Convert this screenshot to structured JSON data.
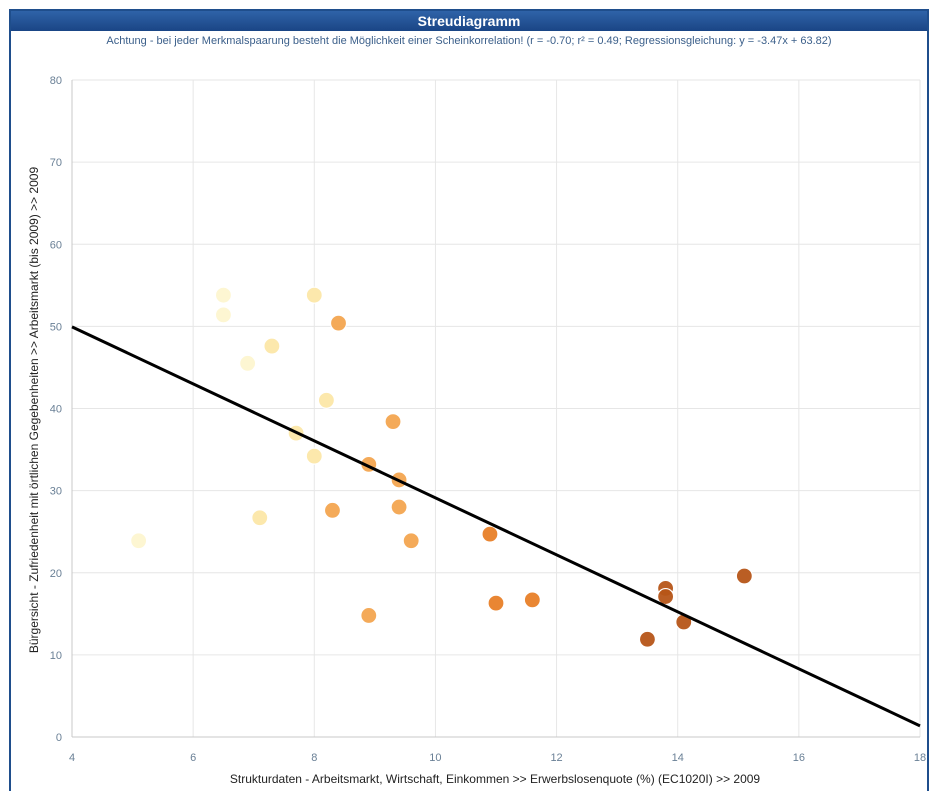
{
  "header": {
    "title": "Streudiagramm",
    "subtitle": "Achtung - bei jeder Merkmalspaarung besteht die Möglichkeit einer Scheinkorrelation! (r = -0.70; r² =  0.49; Regressionsgleichung: y = -3.47x  + 63.82)"
  },
  "chart_data": {
    "type": "scatter",
    "xlabel": "Strukturdaten - Arbeitsmarkt, Wirtschaft, Einkommen >> Erwerbslosenquote (%) (EC1020I) >>  2009",
    "ylabel": "Bürgersicht - Zufriedenheit mit örtlichen Gegebenheiten >> Arbeitsmarkt (bis 2009) >>  2009",
    "xlim": [
      4,
      18
    ],
    "ylim": [
      0,
      80
    ],
    "x_ticks": [
      "4",
      "6",
      "8",
      "10",
      "12",
      "14",
      "16",
      "18"
    ],
    "y_ticks": [
      "0",
      "10",
      "20",
      "30",
      "40",
      "50",
      "60",
      "70",
      "80"
    ],
    "grid": true,
    "regression": {
      "slope": -3.47,
      "intercept": 63.82,
      "color": "#000000"
    },
    "colors": [
      "#fdf6d0",
      "#fce7a8",
      "#f9cf86",
      "#f3a550",
      "#e88028",
      "#b65518",
      "#8a3a10"
    ],
    "points": [
      {
        "x": 5.1,
        "y": 23.9,
        "c": 0
      },
      {
        "x": 6.5,
        "y": 53.8,
        "c": 0
      },
      {
        "x": 6.5,
        "y": 51.4,
        "c": 0
      },
      {
        "x": 6.9,
        "y": 45.5,
        "c": 0
      },
      {
        "x": 7.1,
        "y": 26.7,
        "c": 1
      },
      {
        "x": 7.3,
        "y": 47.6,
        "c": 1
      },
      {
        "x": 7.7,
        "y": 37.0,
        "c": 1
      },
      {
        "x": 8.0,
        "y": 53.8,
        "c": 1
      },
      {
        "x": 8.0,
        "y": 34.2,
        "c": 1
      },
      {
        "x": 8.2,
        "y": 41.0,
        "c": 1
      },
      {
        "x": 8.3,
        "y": 27.6,
        "c": 3
      },
      {
        "x": 8.4,
        "y": 50.4,
        "c": 3
      },
      {
        "x": 8.9,
        "y": 33.2,
        "c": 3
      },
      {
        "x": 8.9,
        "y": 14.8,
        "c": 3
      },
      {
        "x": 9.3,
        "y": 38.4,
        "c": 3
      },
      {
        "x": 9.4,
        "y": 31.3,
        "c": 3
      },
      {
        "x": 9.4,
        "y": 28.0,
        "c": 3
      },
      {
        "x": 9.6,
        "y": 23.9,
        "c": 3
      },
      {
        "x": 10.9,
        "y": 24.7,
        "c": 4
      },
      {
        "x": 11.0,
        "y": 16.3,
        "c": 4
      },
      {
        "x": 11.6,
        "y": 16.7,
        "c": 4
      },
      {
        "x": 13.5,
        "y": 11.9,
        "c": 5
      },
      {
        "x": 13.8,
        "y": 18.1,
        "c": 5
      },
      {
        "x": 13.8,
        "y": 17.1,
        "c": 5
      },
      {
        "x": 14.1,
        "y": 14.0,
        "c": 5
      },
      {
        "x": 15.1,
        "y": 19.6,
        "c": 5
      }
    ]
  }
}
